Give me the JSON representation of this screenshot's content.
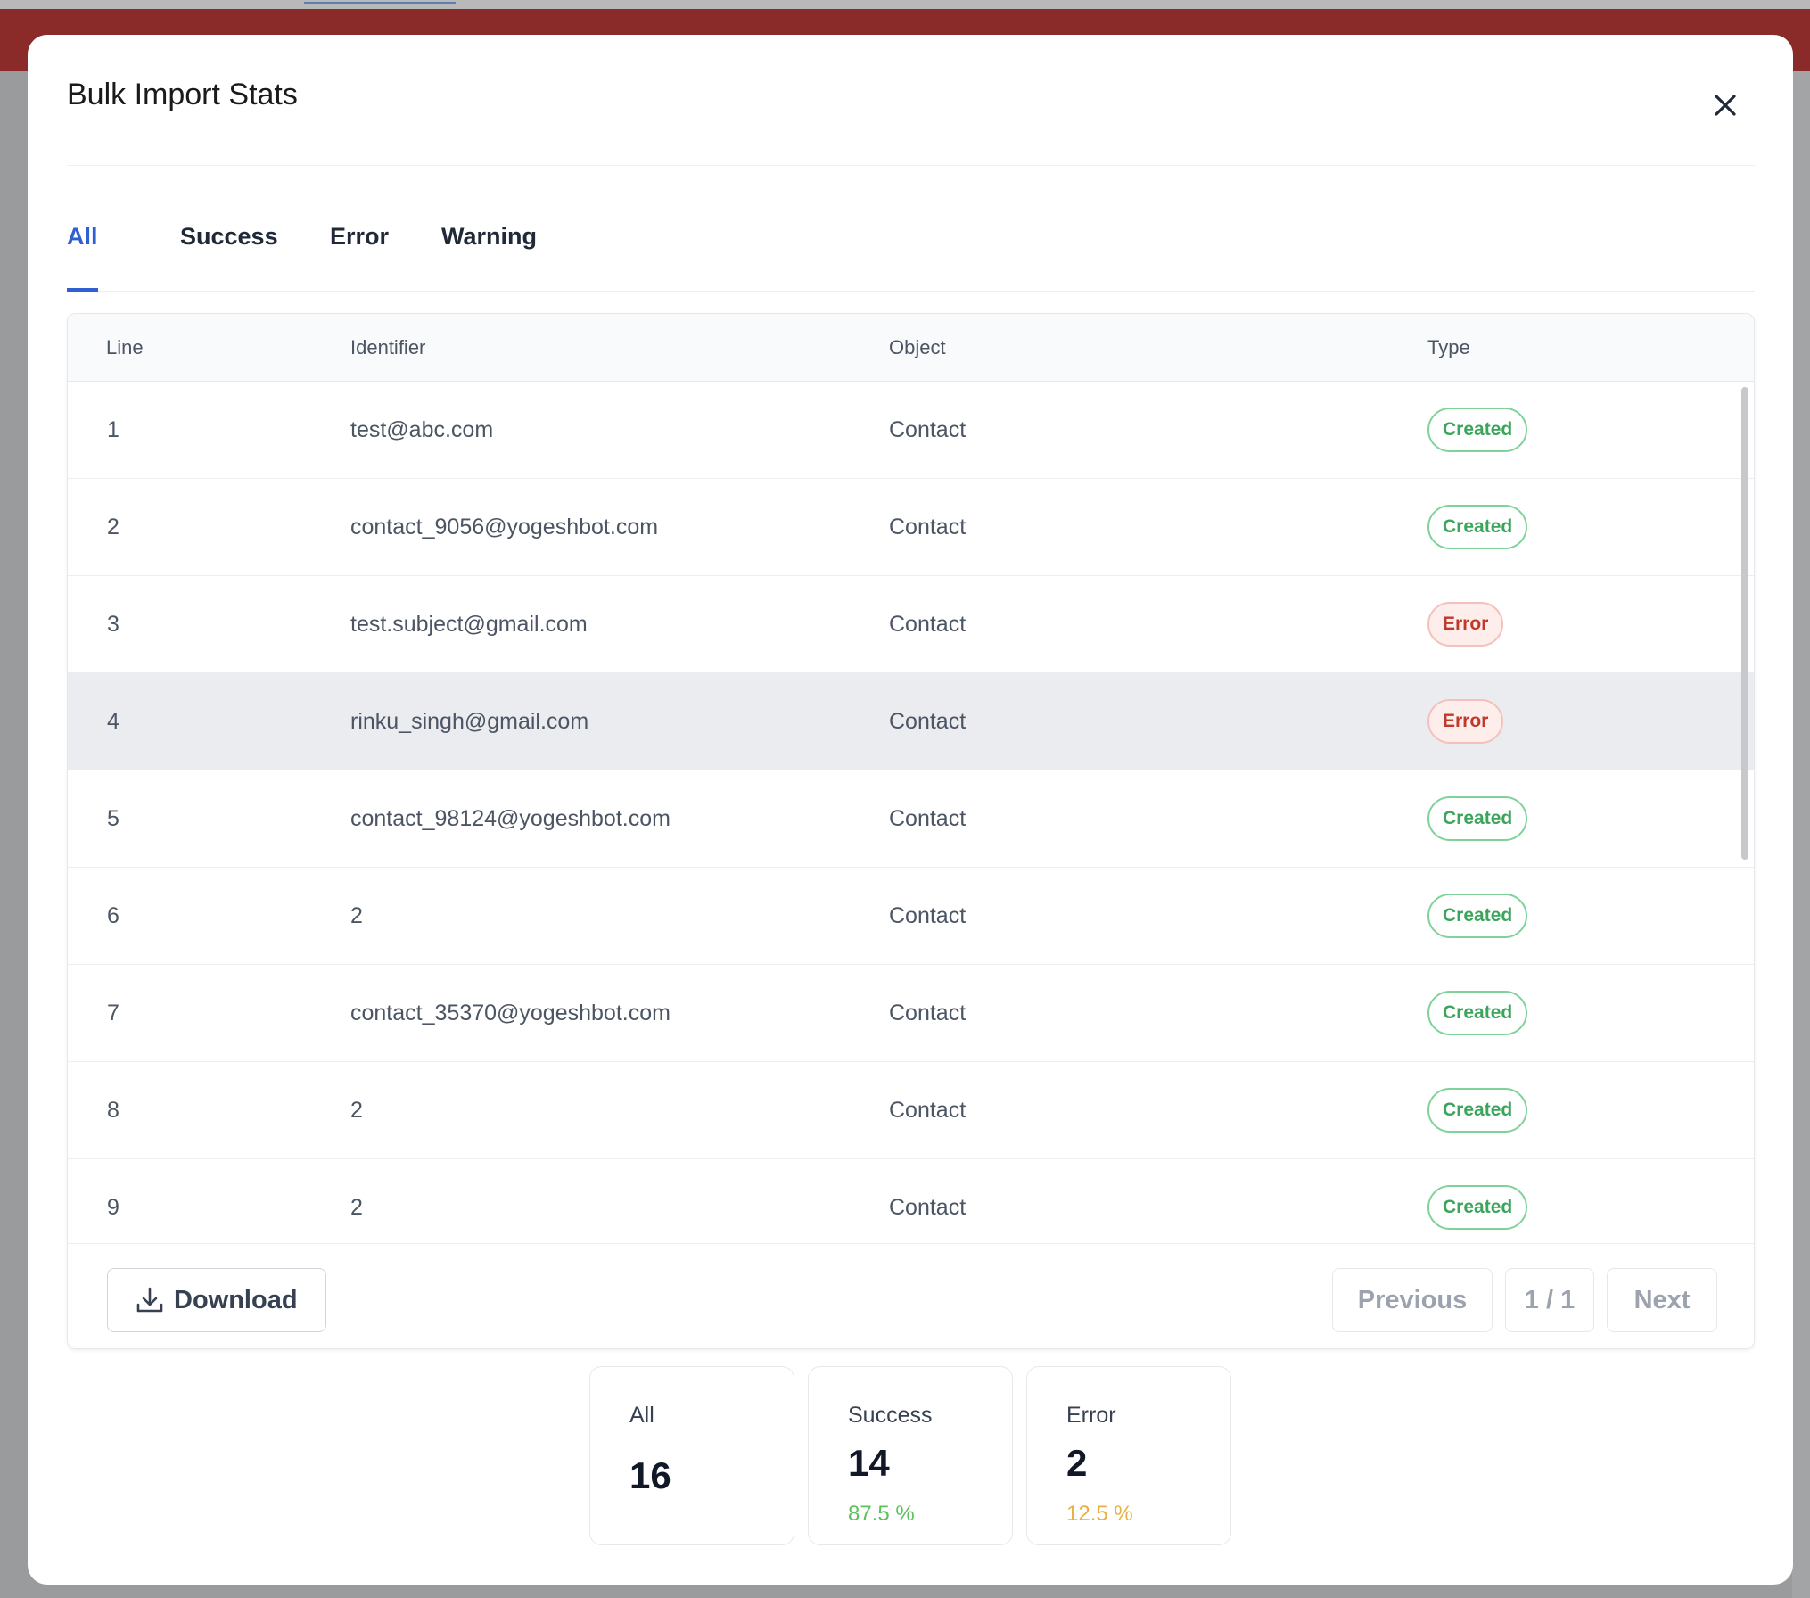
{
  "modal": {
    "title": "Bulk Import Stats",
    "close_icon": "close-icon"
  },
  "tabs": [
    {
      "label": "All",
      "active": true
    },
    {
      "label": "Success",
      "active": false
    },
    {
      "label": "Error",
      "active": false
    },
    {
      "label": "Warning",
      "active": false
    }
  ],
  "table": {
    "columns": [
      "Line",
      "Identifier",
      "Object",
      "Type"
    ],
    "rows": [
      {
        "line": "1",
        "identifier": "test@abc.com",
        "object": "Contact",
        "type": "Created"
      },
      {
        "line": "2",
        "identifier": "contact_9056@yogeshbot.com",
        "object": "Contact",
        "type": "Created"
      },
      {
        "line": "3",
        "identifier": "test.subject@gmail.com",
        "object": "Contact",
        "type": "Error"
      },
      {
        "line": "4",
        "identifier": "rinku_singh@gmail.com",
        "object": "Contact",
        "type": "Error"
      },
      {
        "line": "5",
        "identifier": "contact_98124@yogeshbot.com",
        "object": "Contact",
        "type": "Created"
      },
      {
        "line": "6",
        "identifier": "2",
        "object": "Contact",
        "type": "Created"
      },
      {
        "line": "7",
        "identifier": "contact_35370@yogeshbot.com",
        "object": "Contact",
        "type": "Created"
      },
      {
        "line": "8",
        "identifier": "2",
        "object": "Contact",
        "type": "Created"
      },
      {
        "line": "9",
        "identifier": "2",
        "object": "Contact",
        "type": "Created"
      }
    ]
  },
  "footer": {
    "download_label": "Download",
    "download_icon": "download-icon",
    "previous_label": "Previous",
    "page_indicator": "1 / 1",
    "next_label": "Next"
  },
  "stats": {
    "all": {
      "label": "All",
      "value": "16"
    },
    "success": {
      "label": "Success",
      "value": "14",
      "percent": "87.5 %"
    },
    "error": {
      "label": "Error",
      "value": "2",
      "percent": "12.5 %"
    }
  },
  "colors": {
    "accent": "#2f5fd0",
    "success": "#3aa55b",
    "success_percent": "#5cc25b",
    "error": "#c0392b",
    "error_percent": "#e8b040"
  }
}
